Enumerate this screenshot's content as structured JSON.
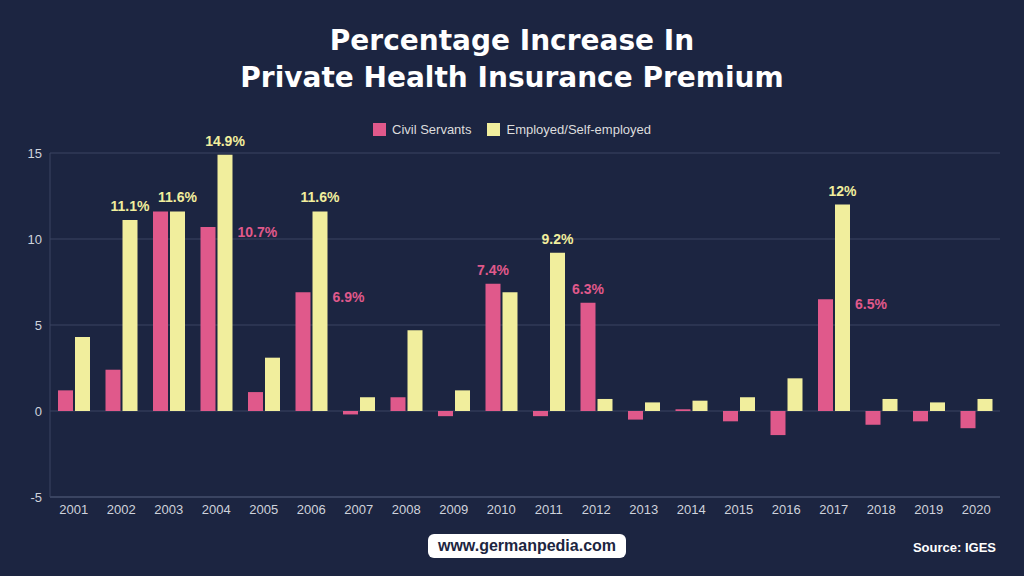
{
  "chart_data": {
    "type": "bar",
    "title": "Percentage Increase In\nPrivate Health Insurance Premium",
    "categories": [
      "2001",
      "2002",
      "2003",
      "2004",
      "2005",
      "2006",
      "2007",
      "2008",
      "2009",
      "2010",
      "2011",
      "2012",
      "2013",
      "2014",
      "2015",
      "2016",
      "2017",
      "2018",
      "2019",
      "2020"
    ],
    "series": [
      {
        "name": "Civil Servants",
        "color": "#e0598b",
        "values": [
          1.2,
          2.4,
          11.6,
          10.7,
          1.1,
          6.9,
          -0.2,
          0.8,
          -0.3,
          7.4,
          -0.3,
          6.3,
          -0.5,
          0.1,
          -0.6,
          -1.4,
          6.5,
          -0.8,
          -0.6,
          -1.0
        ],
        "value_labels": [
          null,
          null,
          null,
          "10.7%",
          null,
          "6.9%",
          null,
          null,
          null,
          "7.4%",
          null,
          "6.3%",
          null,
          null,
          null,
          null,
          "6.5%",
          null,
          null,
          null
        ]
      },
      {
        "name": "Employed/Self-employed",
        "color": "#f1ee9d",
        "values": [
          4.3,
          11.1,
          11.6,
          14.9,
          3.1,
          11.6,
          0.8,
          4.7,
          1.2,
          6.9,
          9.2,
          0.7,
          0.5,
          0.6,
          0.8,
          1.9,
          12,
          0.7,
          0.5,
          0.7
        ],
        "value_labels": [
          null,
          "11.1%",
          "11.6%",
          "14.9%",
          null,
          "11.6%",
          null,
          null,
          null,
          null,
          "9.2%",
          null,
          null,
          null,
          null,
          null,
          "12%",
          null,
          null,
          null
        ]
      }
    ],
    "ylim": [
      -5,
      15
    ],
    "yticks": [
      -5,
      0,
      5,
      10,
      15
    ],
    "grid": true,
    "legend": "top",
    "data_labels": true,
    "annotations": [
      "www.germanpedia.com",
      "Source: IGES"
    ]
  }
}
